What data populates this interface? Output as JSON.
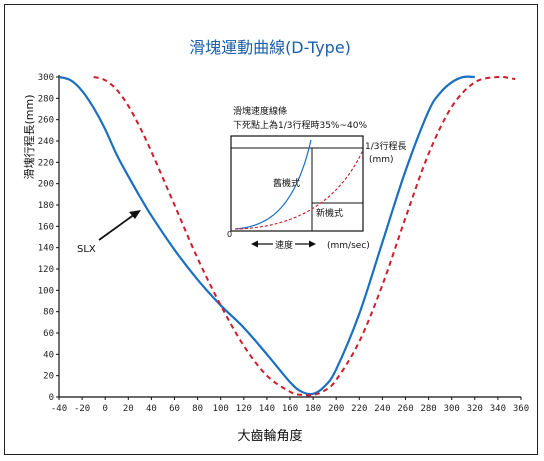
{
  "chart_data": {
    "type": "line",
    "title": "滑塊運動曲線(D-Type)",
    "xlabel": "大齒輪角度",
    "ylabel": "滑塊行程長(mm)",
    "xlim": [
      -40,
      360
    ],
    "ylim": [
      0,
      300
    ],
    "x_ticks": [
      -40,
      -20,
      0,
      20,
      40,
      60,
      80,
      100,
      120,
      140,
      160,
      180,
      200,
      220,
      240,
      260,
      280,
      300,
      320,
      340,
      360
    ],
    "x_tick_labels": [
      "-40",
      "-20",
      "0",
      "20",
      "40",
      "60",
      "80",
      "100",
      "120",
      "140",
      "160",
      "180",
      "200",
      "220",
      "240",
      "260",
      "280",
      "300",
      "320",
      "340",
      "360"
    ],
    "y_ticks": [
      0,
      20,
      40,
      60,
      80,
      100,
      120,
      140,
      160,
      180,
      200,
      220,
      240,
      260,
      280,
      300
    ],
    "grid": false,
    "series": [
      {
        "name": "SLX",
        "color": "#1a6fc0",
        "style": "solid",
        "x": [
          -40,
          -30,
          -20,
          -10,
          0,
          10,
          20,
          30,
          40,
          60,
          80,
          100,
          120,
          140,
          160,
          170,
          180,
          190,
          200,
          220,
          240,
          260,
          280,
          290,
          300,
          310,
          320
        ],
        "y": [
          300,
          297,
          287,
          271,
          251,
          227,
          207,
          188,
          170,
          138,
          110,
          86,
          65,
          40,
          14,
          5,
          3,
          10,
          26,
          78,
          145,
          212,
          268,
          285,
          295,
          300,
          300
        ]
      },
      {
        "name": "",
        "color": "#cc1e2c",
        "style": "dashed",
        "x": [
          -10,
          0,
          10,
          20,
          30,
          40,
          60,
          80,
          100,
          120,
          140,
          160,
          170,
          180,
          190,
          200,
          220,
          240,
          260,
          280,
          300,
          320,
          340,
          350,
          355
        ],
        "y": [
          300,
          297,
          288,
          273,
          253,
          230,
          180,
          130,
          86,
          48,
          20,
          5,
          2,
          2,
          6,
          16,
          52,
          105,
          168,
          228,
          272,
          295,
          300,
          299,
          298
        ]
      }
    ],
    "annotations": [
      {
        "text": "SLX",
        "target_x": 40,
        "target_y": 170
      }
    ],
    "inset": {
      "title_line1": "滑塊速度線條",
      "title_line2": "下死點上為1/3行程時35%~40%",
      "curve_label_1": "1/3行程長",
      "curve_label_2": "(mm)",
      "label_old": "舊機式",
      "label_new": "新機式",
      "origin_label": "0",
      "arrow_label": "速度",
      "unit_label": "(mm/sec)"
    }
  }
}
